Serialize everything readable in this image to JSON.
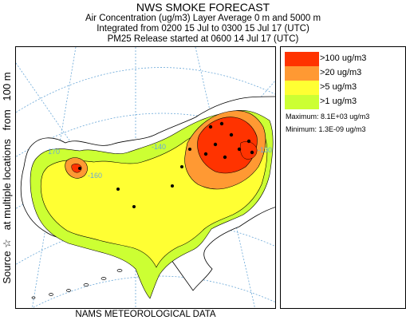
{
  "header": {
    "title": "NWS SMOKE FORECAST",
    "line1": "Air Concentration (ug/m3) Layer Average    0 m and  5000 m",
    "line2": "Integrated from 0200 15 Jul to 0300 15 Jul 17 (UTC)",
    "line3": "PM25 Release started at 0600 14 Jul 17 (UTC)"
  },
  "side_label": "Source ☆   at multiple locations   from   100 m",
  "map": {
    "graticule_labels": [
      "170",
      "-160",
      "-140",
      "-130"
    ],
    "colors": {
      "background": "#ffffff",
      "land_outline": "#000000",
      "graticule": "#6aa8d8",
      "level_1": "#ccff33",
      "level_5": "#ffff33",
      "level_20": "#ff9933",
      "level_100": "#ff3300"
    }
  },
  "legend": {
    "entries": [
      {
        "label": ">100 ug/m3",
        "color": "#ff3300"
      },
      {
        "label": ">20 ug/m3",
        "color": "#ff9933"
      },
      {
        "label": ">5 ug/m3",
        "color": "#ffff33"
      },
      {
        "label": ">1 ug/m3",
        "color": "#ccff33"
      }
    ],
    "maximum": "Maximum: 8.1E+03 ug/m3",
    "minimum": "Minimum: 1.3E-09 ug/m3"
  },
  "footer": "NAMS METEOROLOGICAL DATA"
}
